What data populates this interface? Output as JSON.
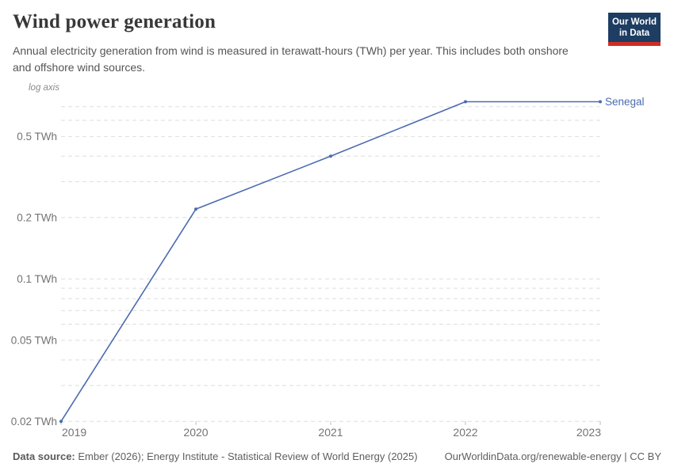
{
  "header": {
    "title": "Wind power generation",
    "subtitle": "Annual electricity generation from wind is measured in terawatt-hours (TWh) per year. This includes both onshore and offshore wind sources.",
    "logo": {
      "line1": "Our World",
      "line2": "in Data",
      "bg_color": "#1d3d63",
      "accent_color": "#cf2d24"
    }
  },
  "chart_data": {
    "type": "line",
    "title": "Wind power generation",
    "x": [
      2019,
      2020,
      2021,
      2022,
      2023
    ],
    "series": [
      {
        "name": "Senegal",
        "values": [
          0.02,
          0.22,
          0.4,
          0.74,
          0.74
        ],
        "color": "#4a6bb0"
      }
    ],
    "axis_note": "log axis",
    "y_scale": "log",
    "y_unit": "TWh",
    "ylim": [
      0.02,
      0.74
    ],
    "y_ticks": [
      {
        "value": 0.02,
        "label": "0.02 TWh"
      },
      {
        "value": 0.05,
        "label": "0.05 TWh"
      },
      {
        "value": 0.1,
        "label": "0.1 TWh"
      },
      {
        "value": 0.2,
        "label": "0.2 TWh"
      },
      {
        "value": 0.5,
        "label": "0.5 TWh"
      }
    ],
    "y_gridlines": [
      0.02,
      0.03,
      0.04,
      0.05,
      0.06,
      0.07,
      0.08,
      0.09,
      0.1,
      0.2,
      0.3,
      0.4,
      0.5,
      0.6,
      0.7
    ],
    "x_ticks": [
      "2019",
      "2020",
      "2021",
      "2022",
      "2023"
    ],
    "grid": "dashed",
    "legend_position": "line-end"
  },
  "footer": {
    "source_label": "Data source:",
    "source_text": " Ember (2026); Energy Institute - Statistical Review of World Energy (2025)",
    "right_text": "OurWorldinData.org/renewable-energy | CC BY"
  }
}
